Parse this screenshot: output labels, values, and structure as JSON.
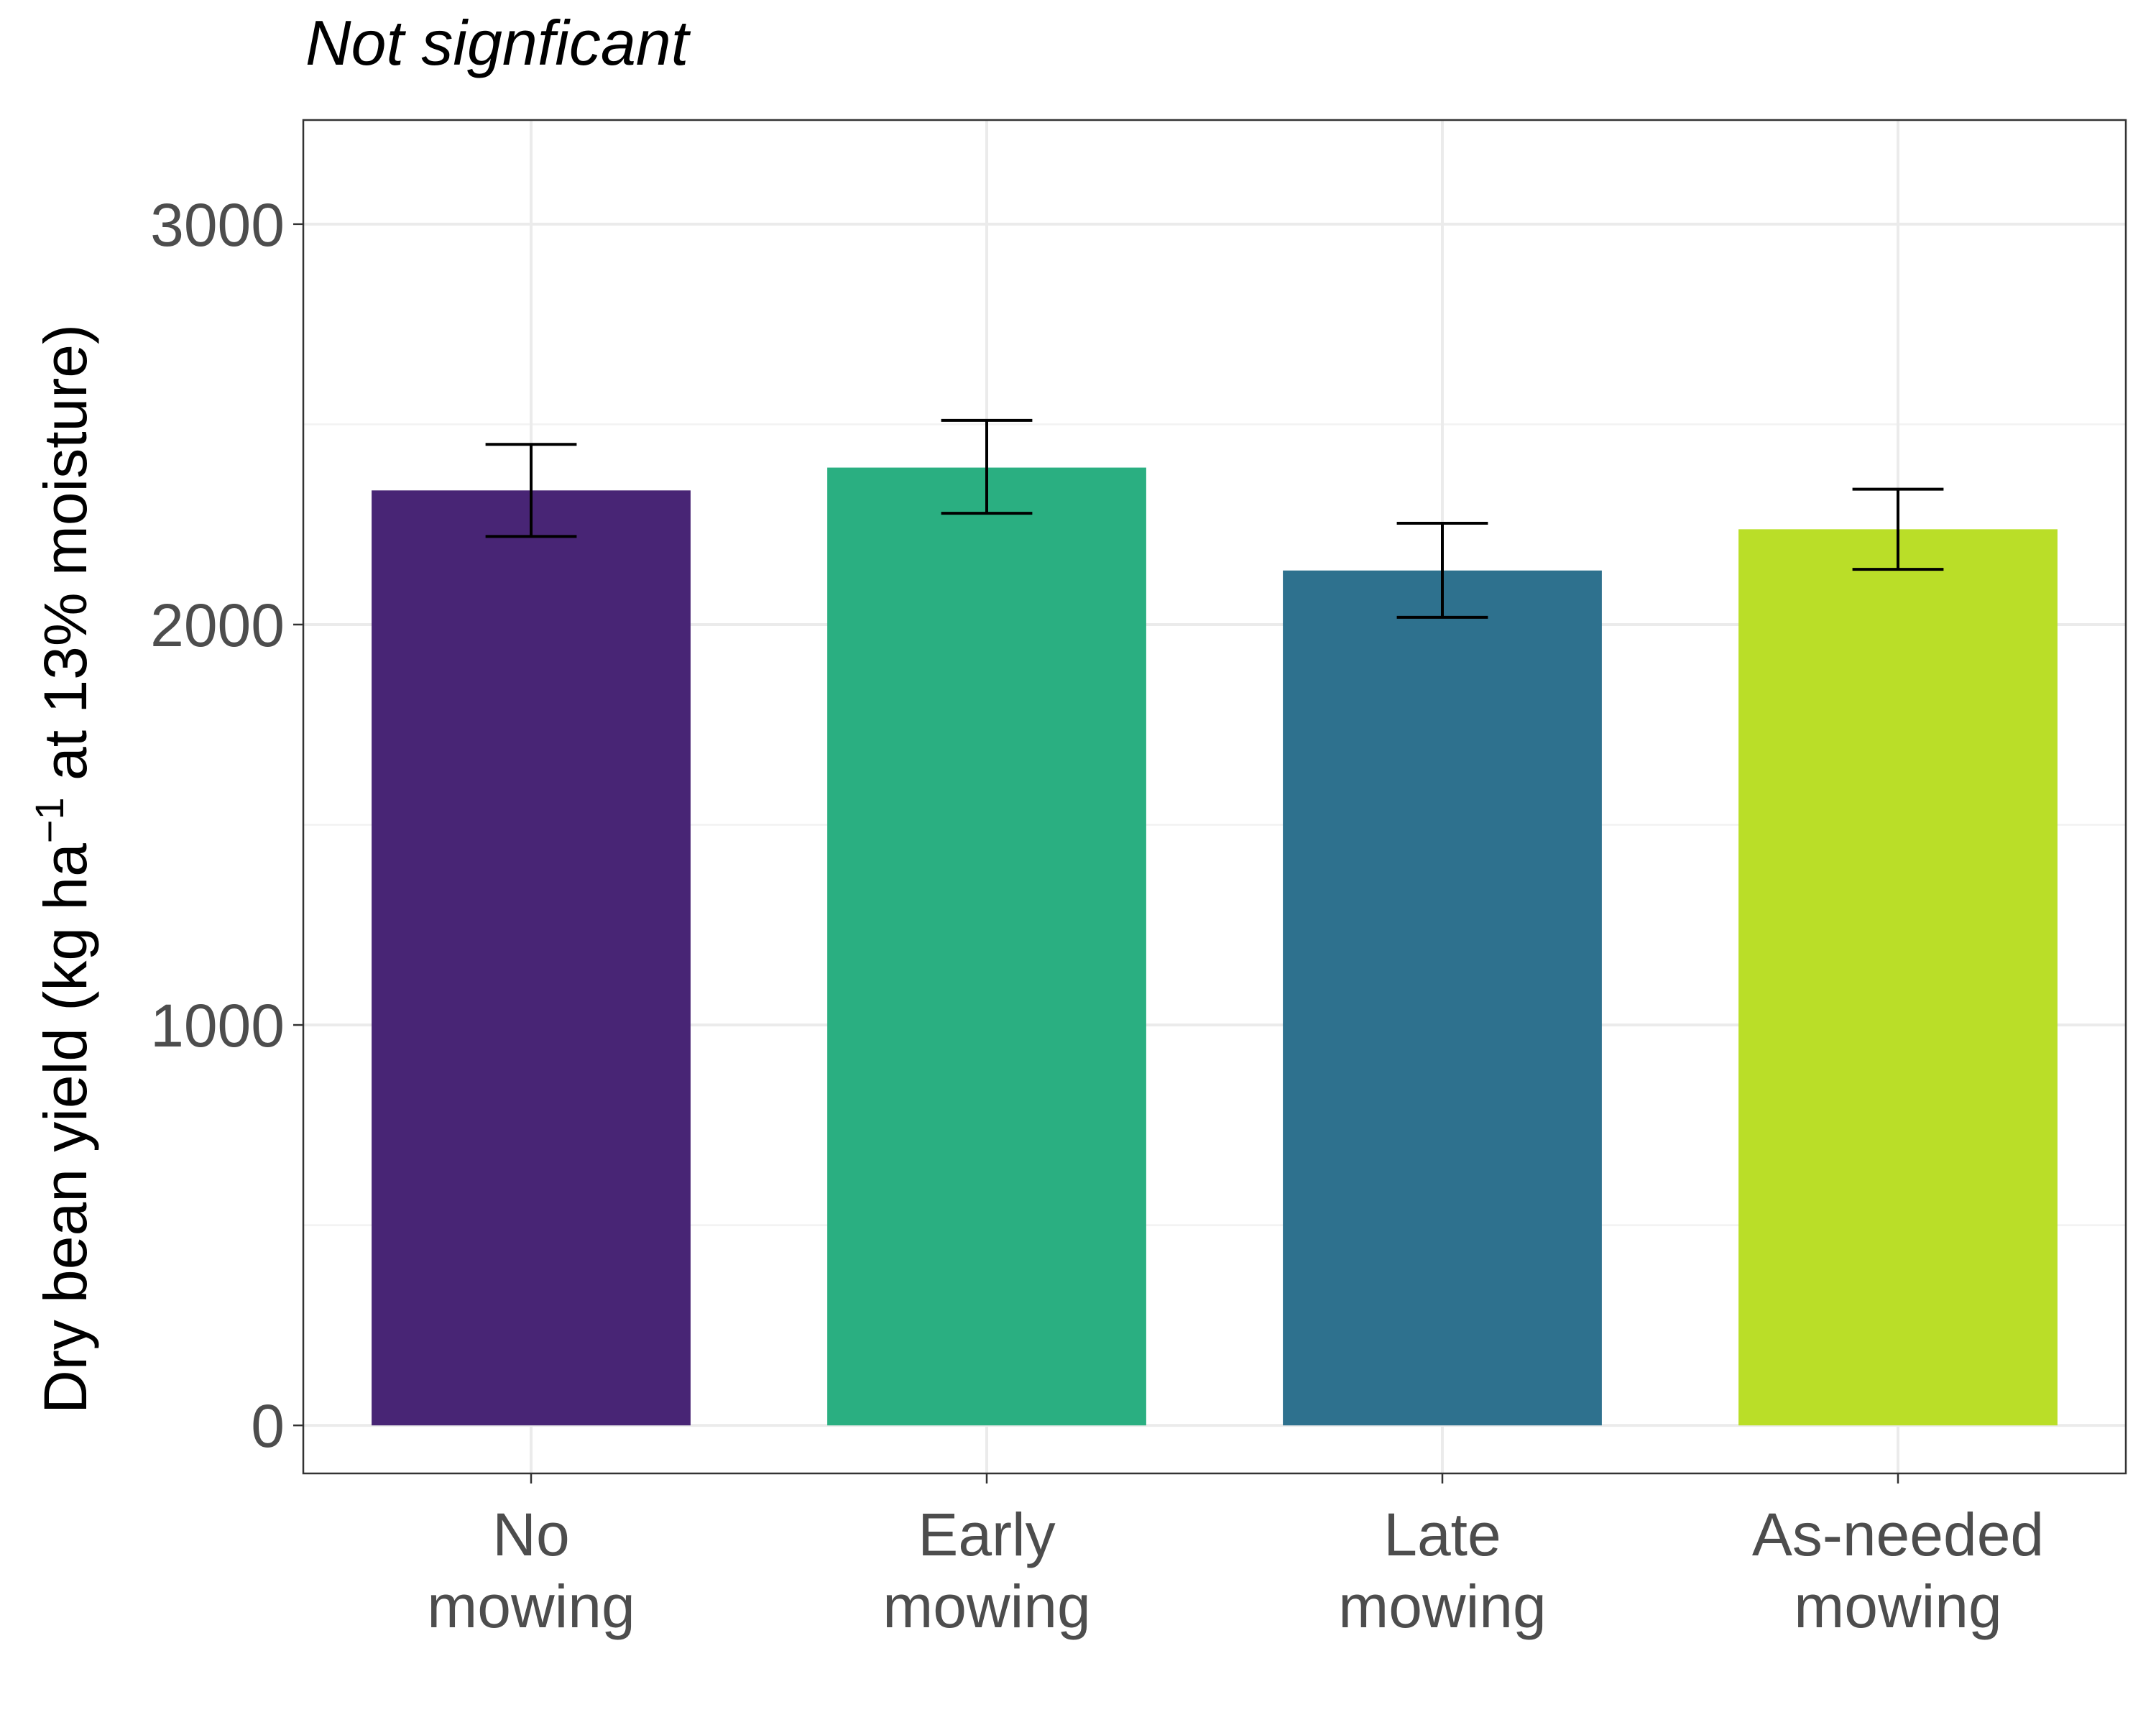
{
  "chart_data": {
    "type": "bar",
    "title": "Not signficant",
    "ylabel": {
      "before": "Dry bean yield (kg ha",
      "superscript": "−1",
      "after": " at 13% moisture)"
    },
    "xlabel": "",
    "categories": [
      [
        "No",
        "mowing"
      ],
      [
        "Early",
        "mowing"
      ],
      [
        "Late",
        "mowing"
      ],
      [
        "As-needed",
        "mowing"
      ]
    ],
    "values": [
      2335,
      2392,
      2135,
      2238
    ],
    "error_lower": [
      2220,
      2278,
      2018,
      2138
    ],
    "error_upper": [
      2450,
      2510,
      2253,
      2338
    ],
    "colors": [
      "#482575",
      "#2aaf81",
      "#2e718e",
      "#bade28"
    ],
    "ylim": [
      -120,
      3260
    ],
    "yticks": [
      0,
      1000,
      2000,
      3000
    ],
    "yticks_minor": [
      500,
      1500,
      2500
    ],
    "grid": true,
    "legend": "none"
  }
}
